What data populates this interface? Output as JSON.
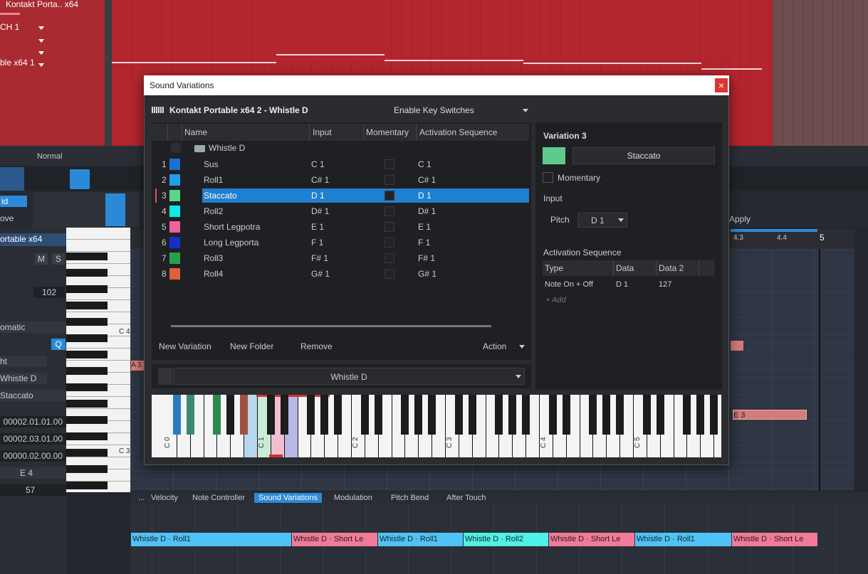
{
  "daw": {
    "track_name": "Kontakt Porta.. x64",
    "channel": "CH 1",
    "instrument": "ble x64 1",
    "mode": "Normal",
    "inspector": {
      "tabs": [
        "id",
        "ove"
      ],
      "instrument": "ortable x64",
      "mute": "M",
      "solo": "S",
      "velocity": "102",
      "mode": "omatic",
      "quantize": "Q",
      "shift": "ht",
      "variation_folder": "Whistle D",
      "variation": "Staccato",
      "start": "00002.01.01.00",
      "end": "00002.03.01.00",
      "length": "00000.02.00.00",
      "pitch": "E 4",
      "velocity_value": "57"
    },
    "apply": "Apply",
    "ruler": [
      "4.3",
      "4.4",
      "5"
    ],
    "piano_labels": [
      "C 4",
      "C 3"
    ],
    "notes": [
      "A 3",
      "E 3"
    ],
    "tabs": [
      "...",
      "Velocity",
      "Note Controller",
      "Sound Variations",
      "Modulation",
      "Pitch Bend",
      "After Touch"
    ],
    "active_tab": 3,
    "lane": [
      {
        "label": "Whistle D · Roll1",
        "color": "#4fc3f7"
      },
      {
        "label": "Whistle D · Short Le",
        "color": "#f27a98"
      },
      {
        "label": "Whistle D · Roll1",
        "color": "#4fc3f7"
      },
      {
        "label": "Whistle D · Roll2",
        "color": "#4ff2e6"
      },
      {
        "label": "Whistle D · Short Le",
        "color": "#f27a98"
      },
      {
        "label": "Whistle D · Roll1",
        "color": "#4fc3f7"
      },
      {
        "label": "Whistle D · Short Le",
        "color": "#f27a98"
      }
    ]
  },
  "dialog": {
    "title": "Sound Variations",
    "close": "×",
    "instrument": "Kontakt Portable x64 2 - Whistle D",
    "key_switch_mode": "Enable Key Switches",
    "columns": [
      "Name",
      "Input",
      "Momentary",
      "Activation Sequence"
    ],
    "folder": "Whistle D",
    "selected_row": 2,
    "rows": [
      {
        "number": "1",
        "color": "#1a6fd8",
        "name": "Sus",
        "input": "C 1",
        "activation": "C 1"
      },
      {
        "number": "2",
        "color": "#1fa0e8",
        "name": "Roll1",
        "input": "C# 1",
        "activation": "C# 1"
      },
      {
        "number": "3",
        "color": "#5ad68a",
        "name": "Staccato",
        "input": "D 1",
        "activation": "D 1"
      },
      {
        "number": "4",
        "color": "#12e8e8",
        "name": "Roll2",
        "input": "D# 1",
        "activation": "D# 1"
      },
      {
        "number": "5",
        "color": "#f0609a",
        "name": "Short Legpotra",
        "input": "E 1",
        "activation": "E 1"
      },
      {
        "number": "6",
        "color": "#1530c8",
        "name": "Long Legporta",
        "input": "F 1",
        "activation": "F 1"
      },
      {
        "number": "7",
        "color": "#28a050",
        "name": "Roll3",
        "input": "F# 1",
        "activation": "F# 1"
      },
      {
        "number": "8",
        "color": "#e0603c",
        "name": "Roll4",
        "input": "G# 1",
        "activation": "G# 1"
      }
    ],
    "buttons": [
      "New Variation",
      "New Folder",
      "Remove",
      "Action"
    ],
    "footer_select": "Whistle D",
    "keyboard_labels": [
      "C 0",
      "C 1",
      "C 2",
      "C 3",
      "C 4",
      "C 5"
    ],
    "detail": {
      "heading": "Variation 3",
      "name": "Staccato",
      "color": "#5ecb8c",
      "momentary": "Momentary",
      "input_heading": "Input",
      "pitch_label": "Pitch",
      "pitch": "D 1",
      "sequence_heading": "Activation Sequence",
      "sequence_columns": [
        "Type",
        "Data",
        "Data 2"
      ],
      "sequence_rows": [
        [
          "Note On + Off",
          "D 1",
          "127"
        ]
      ],
      "add": "+ Add"
    }
  }
}
